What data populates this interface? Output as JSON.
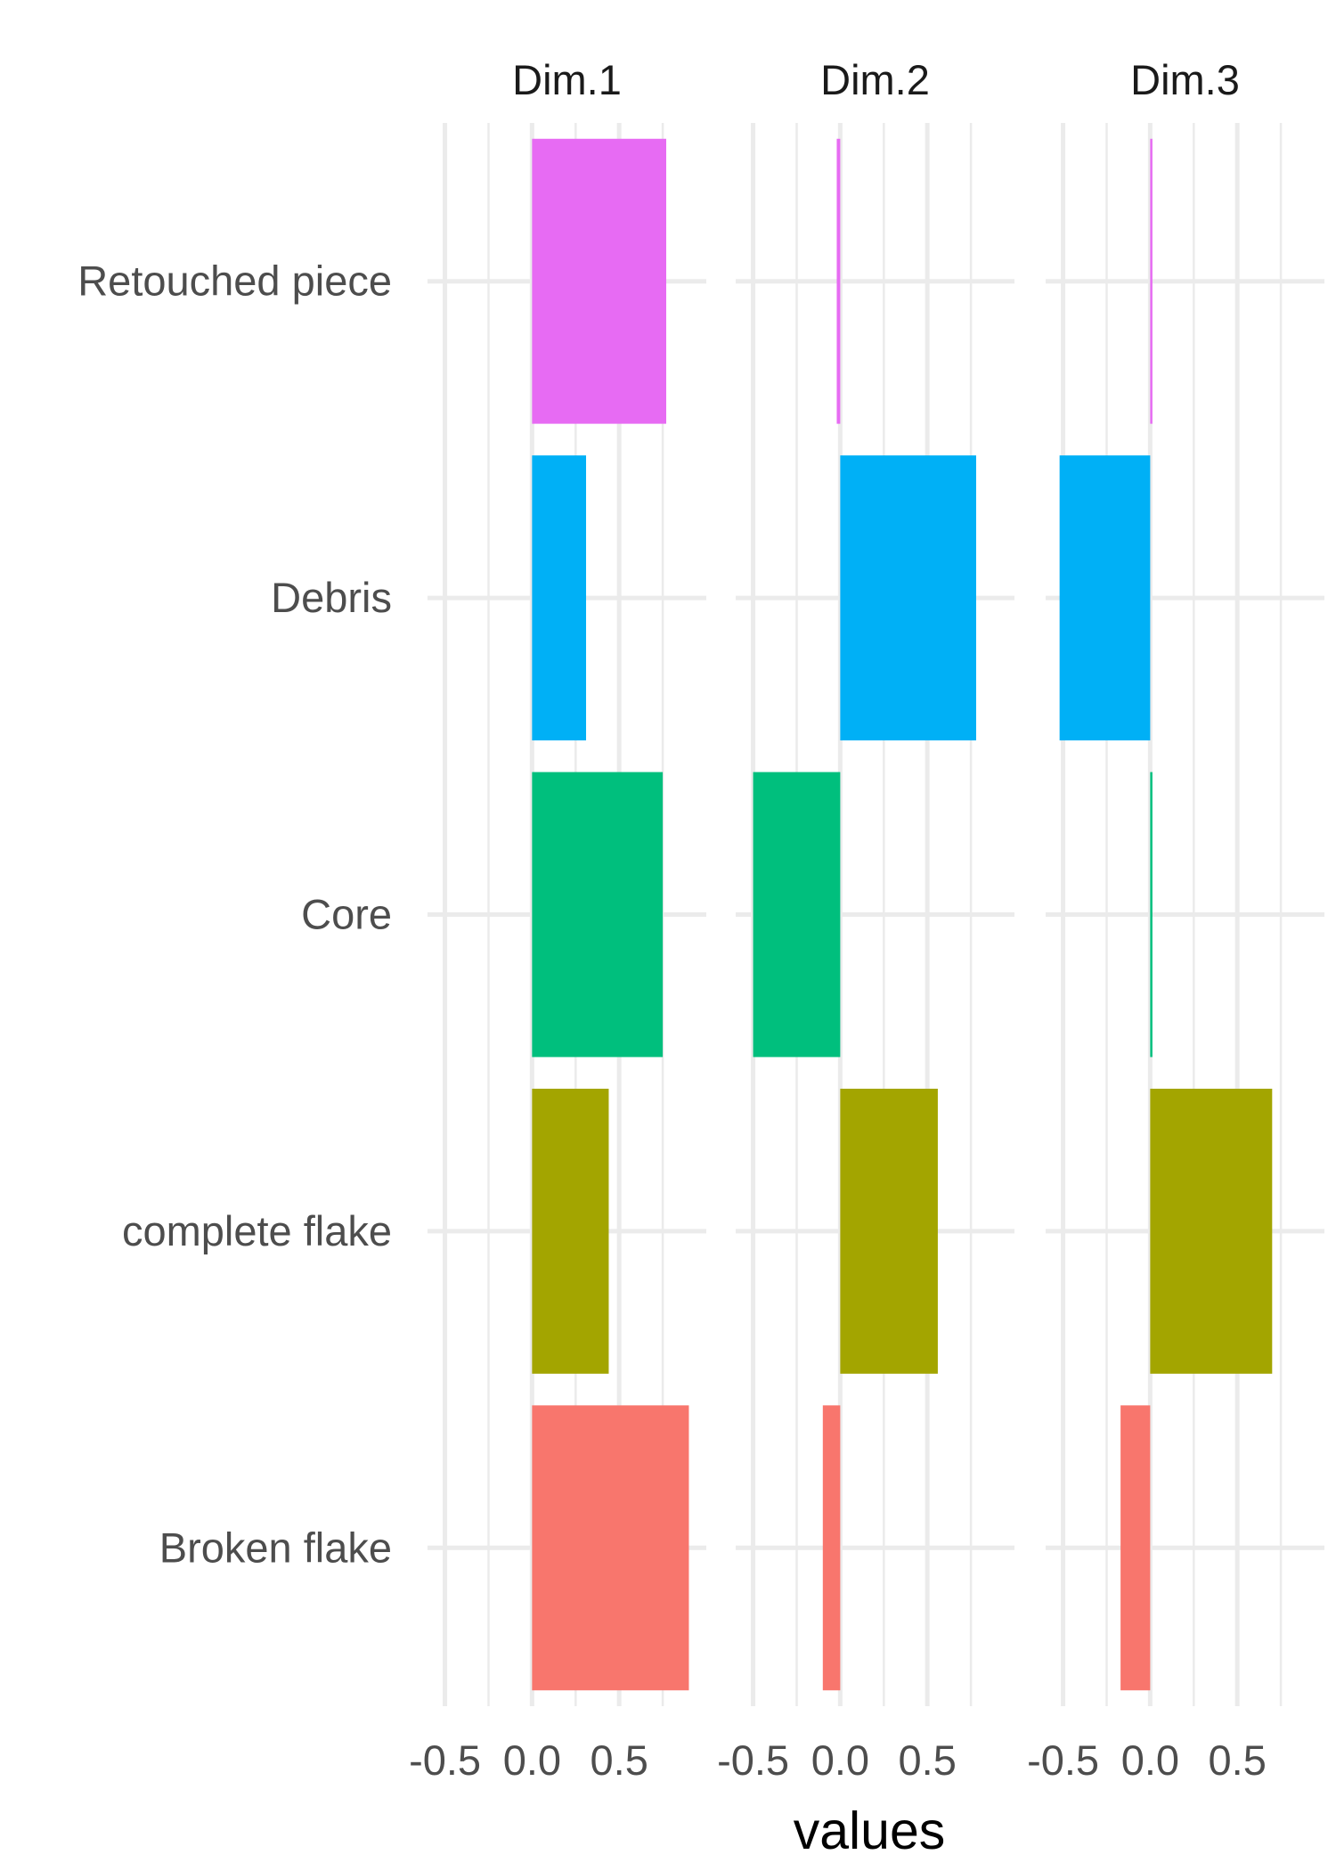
{
  "chart_data": {
    "type": "bar",
    "orientation": "horizontal",
    "facets": [
      "Dim.1",
      "Dim.2",
      "Dim.3"
    ],
    "categories": [
      "Broken flake",
      "complete flake",
      "Core",
      "Debris",
      "Retouched piece"
    ],
    "colors": {
      "Broken flake": "#F8766D",
      "complete flake": "#A3A500",
      "Core": "#00BF7D",
      "Debris": "#00B0F6",
      "Retouched piece": "#E76BF3"
    },
    "values": {
      "Dim.1": {
        "Broken flake": 0.9,
        "complete flake": 0.44,
        "Core": 0.75,
        "Debris": 0.31,
        "Retouched piece": 0.77
      },
      "Dim.2": {
        "Broken flake": -0.1,
        "complete flake": 0.56,
        "Core": -0.5,
        "Debris": 0.78,
        "Retouched piece": -0.02
      },
      "Dim.3": {
        "Broken flake": -0.17,
        "complete flake": 0.7,
        "Core": 0.01,
        "Debris": -0.52,
        "Retouched piece": 0.01
      }
    },
    "xlabel": "values",
    "ylabel": "",
    "xlim": [
      -0.6,
      1.0
    ],
    "xticks": [
      -0.5,
      0.0,
      0.5
    ],
    "xtick_labels": [
      "-0.5",
      "0.0",
      "0.5"
    ],
    "grid": true,
    "legend": "none"
  }
}
